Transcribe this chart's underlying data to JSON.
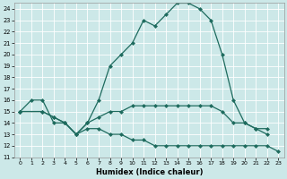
{
  "xlabel": "Humidex (Indice chaleur)",
  "bg_color": "#cce8e8",
  "grid_color": "#ffffff",
  "line_color": "#1e6b5e",
  "xlim": [
    -0.5,
    23.5
  ],
  "ylim": [
    11,
    24.5
  ],
  "xticks": [
    0,
    1,
    2,
    3,
    4,
    5,
    6,
    7,
    8,
    9,
    10,
    11,
    12,
    13,
    14,
    15,
    16,
    17,
    18,
    19,
    20,
    21,
    22,
    23
  ],
  "yticks": [
    11,
    12,
    13,
    14,
    15,
    16,
    17,
    18,
    19,
    20,
    21,
    22,
    23,
    24
  ],
  "line1_x": [
    0,
    1,
    2,
    3,
    4,
    5,
    6,
    7,
    8,
    9,
    10,
    11,
    12,
    13,
    14,
    15,
    16,
    17,
    18,
    19,
    20,
    21,
    22
  ],
  "line1_y": [
    15,
    16,
    16,
    14,
    14,
    13,
    14,
    16,
    19,
    20,
    21,
    23,
    22.5,
    23.5,
    24.5,
    24.5,
    24,
    23,
    20,
    16,
    14,
    13.5,
    13.5
  ],
  "line2_x": [
    0,
    2,
    3,
    4,
    5,
    6,
    7,
    8,
    9,
    10,
    11,
    12,
    13,
    14,
    15,
    16,
    17,
    18,
    19,
    20,
    21,
    22
  ],
  "line2_y": [
    15,
    15,
    14.5,
    14,
    13,
    14,
    14.5,
    15,
    15,
    15.5,
    15.5,
    15.5,
    15.5,
    15.5,
    15.5,
    15.5,
    15.5,
    15,
    14,
    14,
    13.5,
    13
  ],
  "line3_x": [
    0,
    2,
    3,
    4,
    5,
    6,
    7,
    8,
    9,
    10,
    11,
    12,
    13,
    14,
    15,
    16,
    17,
    18,
    19,
    20,
    21,
    22,
    23
  ],
  "line3_y": [
    15,
    15,
    14.5,
    14,
    13,
    13.5,
    13.5,
    13,
    13,
    12.5,
    12.5,
    12,
    12,
    12,
    12,
    12,
    12,
    12,
    12,
    12,
    12,
    12,
    11.5
  ]
}
